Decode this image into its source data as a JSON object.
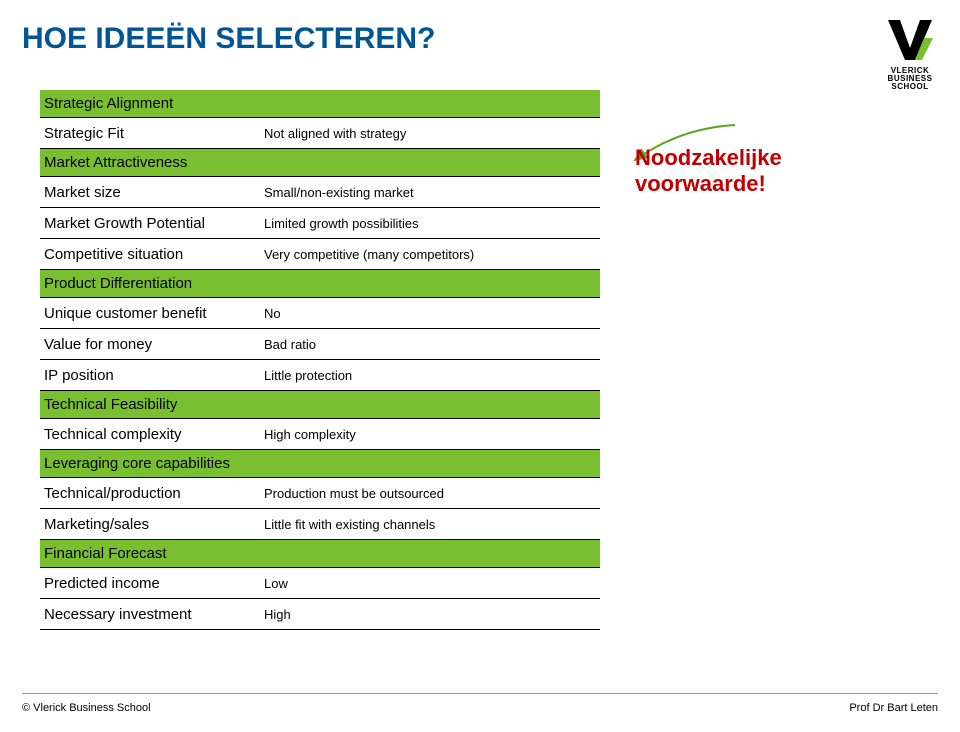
{
  "colors": {
    "title": "#005596",
    "section_bg": "#79bf30",
    "callout": "#c00000",
    "arrow": "#5fa220",
    "rule": "#000000",
    "background": "#ffffff"
  },
  "fonts": {
    "title_size": 30,
    "row_label_size": 15,
    "row_value_size": 13,
    "callout_size": 22,
    "footer_size": 11
  },
  "title": "HOE IDEEËN SELECTEREN?",
  "rows": [
    {
      "type": "section",
      "label": "Strategic Alignment"
    },
    {
      "type": "item",
      "label": "Strategic Fit",
      "value": "Not aligned with strategy"
    },
    {
      "type": "section",
      "label": "Market Attractiveness"
    },
    {
      "type": "item",
      "label": "Market size",
      "value": "Small/non-existing market"
    },
    {
      "type": "item",
      "label": "Market Growth Potential",
      "value": "Limited growth possibilities"
    },
    {
      "type": "item",
      "label": "Competitive situation",
      "value": "Very competitive (many competitors)"
    },
    {
      "type": "section",
      "label": "Product Differentiation"
    },
    {
      "type": "item",
      "label": "Unique customer benefit",
      "value": "No"
    },
    {
      "type": "item",
      "label": "Value for money",
      "value": "Bad ratio"
    },
    {
      "type": "item",
      "label": "IP position",
      "value": "Little protection"
    },
    {
      "type": "section",
      "label": "Technical Feasibility"
    },
    {
      "type": "item",
      "label": "Technical complexity",
      "value": "High complexity"
    },
    {
      "type": "section",
      "label": "Leveraging core capabilities"
    },
    {
      "type": "item",
      "label": "Technical/production",
      "value": "Production must be outsourced"
    },
    {
      "type": "item",
      "label": "Marketing/sales",
      "value": "Little fit with existing channels"
    },
    {
      "type": "section",
      "label": "Financial Forecast"
    },
    {
      "type": "item",
      "label": "Predicted income",
      "value": "Low"
    },
    {
      "type": "item",
      "label": "Necessary investment",
      "value": "High"
    }
  ],
  "callout": {
    "line1": "Noodzakelijke",
    "line2": "voorwaarde!"
  },
  "logo": {
    "mark": "V",
    "line1": "VLERICK",
    "line2": "BUSINESS",
    "line3": "SCHOOL"
  },
  "footer": {
    "left": "© Vlerick Business School",
    "right": "Prof Dr Bart Leten"
  }
}
